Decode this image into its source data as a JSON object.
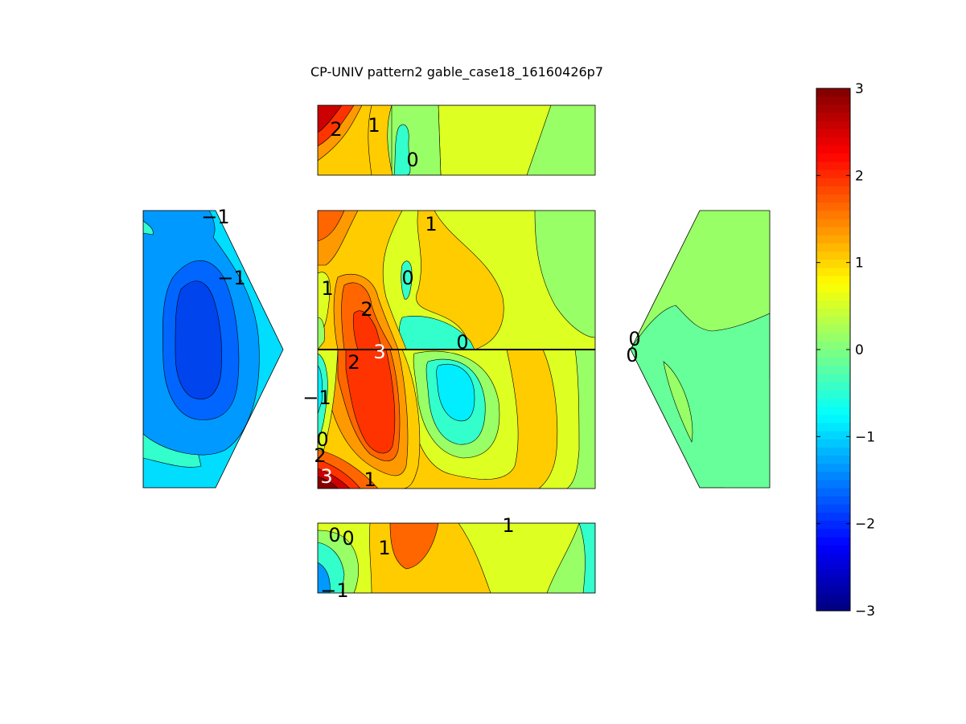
{
  "chart_data": {
    "type": "contour",
    "title": "CP-UNIV pattern2 gable_case18_16160426p7",
    "colormap": "jet",
    "clim": [
      -3,
      3
    ],
    "colorbar": {
      "ticks": [
        "3",
        "2",
        "1",
        "0",
        "−1",
        "−2",
        "−3"
      ],
      "tick_values": [
        3,
        2,
        1,
        0,
        -1,
        -2,
        -3
      ],
      "placement": "right"
    },
    "panels": [
      {
        "name": "top-roof",
        "contour_labels": [
          "2",
          "1",
          "0"
        ],
        "levels": [
          {
            "value": 0.2,
            "color": "#33ffcc"
          },
          {
            "value": 0.3,
            "color": "#99ff66"
          },
          {
            "value": 1.0,
            "color": "#ffcc00"
          },
          {
            "value": 1.3,
            "color": "#ff9900"
          },
          {
            "value": 2.0,
            "color": "#ff3300"
          },
          {
            "value": 2.6,
            "color": "#cc0000"
          },
          {
            "value": 0.6,
            "color": "#ddff22"
          }
        ]
      },
      {
        "name": "main-upper",
        "contour_labels": [
          "1",
          "0",
          "1",
          "2",
          "0"
        ],
        "levels": [
          {
            "value": 0.3,
            "color": "#99ff66"
          },
          {
            "value": 1.0,
            "color": "#ffcc00"
          },
          {
            "value": 1.3,
            "color": "#ff9900"
          },
          {
            "value": 1.8,
            "color": "#ff6600"
          },
          {
            "value": 2.2,
            "color": "#ff3300"
          },
          {
            "value": -0.4,
            "color": "#33ffcc"
          },
          {
            "value": 0.6,
            "color": "#ddff22"
          }
        ]
      },
      {
        "name": "main-lower",
        "contour_labels": [
          "3",
          "2",
          "−1",
          "0",
          "2",
          "3",
          "1"
        ],
        "levels": [
          {
            "value": 1.0,
            "color": "#ffcc00"
          },
          {
            "value": 0.6,
            "color": "#ddff22"
          },
          {
            "value": 0.3,
            "color": "#99ff66"
          },
          {
            "value": -0.4,
            "color": "#33ffcc"
          },
          {
            "value": -1.0,
            "color": "#00eeff"
          },
          {
            "value": 2.2,
            "color": "#ff3300"
          },
          {
            "value": 2.8,
            "color": "#aa0000"
          }
        ]
      },
      {
        "name": "left-gable",
        "contour_labels": [
          "−1",
          "−1"
        ],
        "levels": [
          {
            "value": -1.0,
            "color": "#00ddff"
          },
          {
            "value": -1.5,
            "color": "#0099ff"
          },
          {
            "value": -2.0,
            "color": "#0066ff"
          },
          {
            "value": -2.4,
            "color": "#0033ee"
          },
          {
            "value": -0.6,
            "color": "#33ffcc"
          }
        ]
      },
      {
        "name": "right-gable",
        "contour_labels": [
          "0",
          "0"
        ],
        "levels": [
          {
            "value": 0.3,
            "color": "#99ff66"
          },
          {
            "value": -0.1,
            "color": "#66ff99"
          }
        ]
      },
      {
        "name": "bottom-roof",
        "contour_labels": [
          "0",
          "0",
          "1",
          "1",
          "−1"
        ],
        "levels": [
          {
            "value": 0.6,
            "color": "#ddff22"
          },
          {
            "value": 1.0,
            "color": "#ffcc00"
          },
          {
            "value": 1.8,
            "color": "#ff6600"
          },
          {
            "value": 0.3,
            "color": "#99ff66"
          },
          {
            "value": -0.4,
            "color": "#33ffcc"
          },
          {
            "value": -1.0,
            "color": "#0099ff"
          }
        ]
      }
    ]
  }
}
